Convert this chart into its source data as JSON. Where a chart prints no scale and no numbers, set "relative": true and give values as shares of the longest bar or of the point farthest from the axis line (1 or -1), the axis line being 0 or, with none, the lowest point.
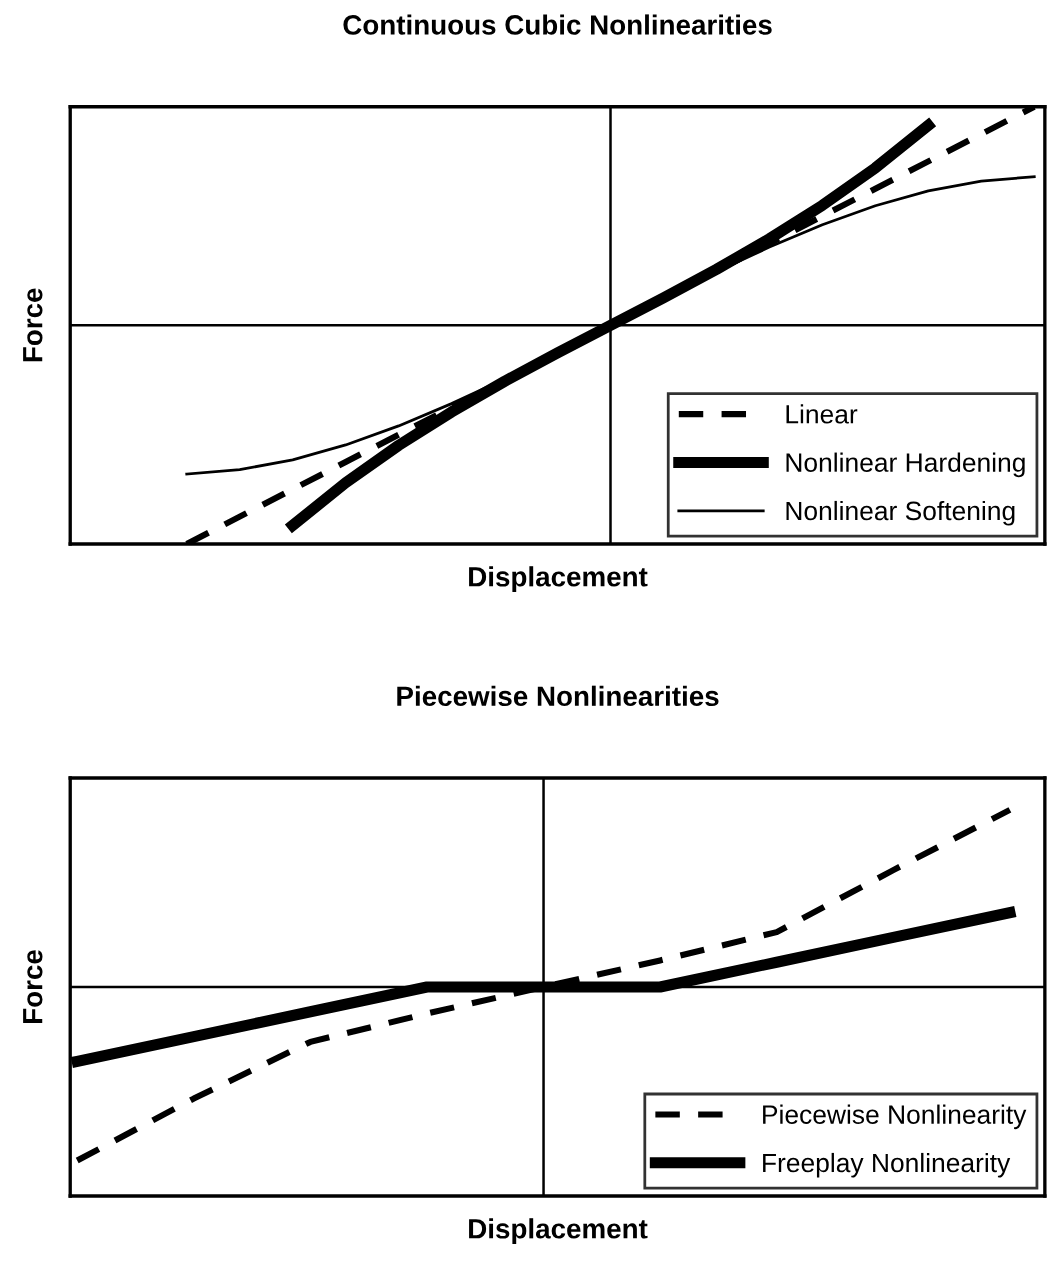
{
  "chart_data": [
    {
      "type": "line",
      "title": "Continuous Cubic Nonlinearities",
      "xlabel": "Displacement",
      "ylabel": "Force",
      "relative": true,
      "legend": "bottom right",
      "categories": [
        null,
        null,
        null,
        null,
        null,
        null,
        null,
        null,
        null,
        null,
        null,
        null,
        null,
        null,
        null,
        null,
        null
      ],
      "series": [
        {
          "name": "Linear",
          "color": "#000000",
          "line_style": "dashed",
          "values": [
            -1.0,
            -0.875,
            -0.75,
            -0.625,
            -0.5,
            -0.375,
            -0.25,
            -0.125,
            0,
            0.125,
            0.25,
            0.375,
            0.5,
            0.625,
            0.75,
            0.875,
            1.0
          ]
        },
        {
          "name": "Nonlinear Hardening",
          "color": "#000000",
          "line_style": "solid",
          "values": [
            null,
            null,
            -0.915,
            -0.72,
            -0.549,
            -0.396,
            -0.256,
            -0.126,
            0,
            0.126,
            0.256,
            0.396,
            0.549,
            0.72,
            0.915,
            null,
            null
          ]
        },
        {
          "name": "Nonlinear Softening",
          "color": "#000000",
          "line_style": "solid",
          "values": [
            -0.68,
            -0.66,
            -0.615,
            -0.547,
            -0.46,
            -0.358,
            -0.245,
            -0.124,
            0,
            0.124,
            0.245,
            0.358,
            0.46,
            0.547,
            0.615,
            0.66,
            0.68
          ]
        }
      ]
    },
    {
      "type": "line",
      "title": "Piecewise Nonlinearities",
      "xlabel": "Displacement",
      "ylabel": "Force",
      "relative": true,
      "legend": "bottom right",
      "categories": [
        null,
        null,
        null,
        null,
        null,
        null,
        null,
        null,
        null
      ],
      "series": [
        {
          "name": "Piecewise Nonlinearity",
          "color": "#000000",
          "line_style": "dashed",
          "values": [
            -0.98,
            -0.63,
            -0.31,
            -0.15,
            0,
            0.15,
            0.31,
            0.66,
            1.0
          ]
        },
        {
          "name": "Freeplay Nonlinearity",
          "color": "#000000",
          "line_style": "solid",
          "values": [
            -0.42,
            -0.28,
            -0.14,
            0,
            0,
            0,
            0.14,
            0.28,
            0.42
          ]
        }
      ]
    }
  ]
}
